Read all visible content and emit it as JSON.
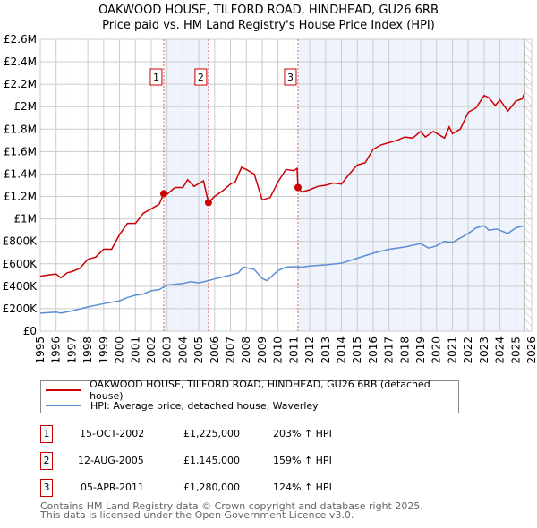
{
  "title": "OAKWOOD HOUSE, TILFORD ROAD, HINDHEAD, GU26 6RB",
  "subtitle": "Price paid vs. HM Land Registry's House Price Index (HPI)",
  "colors": {
    "property": "#cc0000",
    "hpi": "#5b8fd4",
    "shade": "#eef3fc",
    "grid": "#cccccc"
  },
  "chart_data": {
    "type": "line",
    "title": "OAKWOOD HOUSE, TILFORD ROAD, HINDHEAD, GU26 6RB — Price paid vs. HM Land Registry's House Price Index (HPI)",
    "xlim": [
      1995,
      2026
    ],
    "ylim": [
      0,
      2600000
    ],
    "x_ticks": [
      "1995",
      "1996",
      "1997",
      "1998",
      "1999",
      "2000",
      "2001",
      "2002",
      "2003",
      "2004",
      "2005",
      "2006",
      "2007",
      "2008",
      "2009",
      "2010",
      "2011",
      "2012",
      "2013",
      "2014",
      "2015",
      "2016",
      "2017",
      "2018",
      "2019",
      "2020",
      "2021",
      "2022",
      "2023",
      "2024",
      "2025",
      "2026"
    ],
    "y_ticks": [
      {
        "v": 0,
        "label": "£0"
      },
      {
        "v": 200000,
        "label": "£200K"
      },
      {
        "v": 400000,
        "label": "£400K"
      },
      {
        "v": 600000,
        "label": "£600K"
      },
      {
        "v": 800000,
        "label": "£800K"
      },
      {
        "v": 1000000,
        "label": "£1M"
      },
      {
        "v": 1200000,
        "label": "£1.2M"
      },
      {
        "v": 1400000,
        "label": "£1.4M"
      },
      {
        "v": 1600000,
        "label": "£1.6M"
      },
      {
        "v": 1800000,
        "label": "£1.8M"
      },
      {
        "v": 2000000,
        "label": "£2M"
      },
      {
        "v": 2200000,
        "label": "£2.2M"
      },
      {
        "v": 2400000,
        "label": "£2.4M"
      },
      {
        "v": 2600000,
        "label": "£2.6M"
      }
    ],
    "grid": true,
    "shaded_ranges": [
      [
        2002.79,
        2005.61
      ],
      [
        2011.26,
        2025.55
      ]
    ],
    "hatched_from": 2025.55,
    "series": [
      {
        "name": "OAKWOOD HOUSE, TILFORD ROAD, HINDHEAD, GU26 6RB (detached house)",
        "color": "#cc0000",
        "x": [
          1995,
          1995.5,
          1996,
          1996.3,
          1996.7,
          1997,
          1997.5,
          1998,
          1998.5,
          1999,
          1999.5,
          2000,
          2000.5,
          2001,
          2001.5,
          2002,
          2002.5,
          2002.79,
          2003,
          2003.5,
          2004,
          2004.3,
          2004.7,
          2005.3,
          2005.61,
          2006,
          2006.5,
          2007,
          2007.3,
          2007.7,
          2008,
          2008.5,
          2009,
          2009.5,
          2010,
          2010.5,
          2011,
          2011.2,
          2011.26,
          2011.5,
          2012,
          2012.5,
          2013,
          2013.5,
          2014,
          2014.5,
          2015,
          2015.5,
          2016,
          2016.5,
          2017,
          2017.5,
          2018,
          2018.5,
          2019,
          2019.3,
          2019.8,
          2020.5,
          2020.8,
          2021,
          2021.5,
          2022,
          2022.5,
          2023,
          2023.3,
          2023.7,
          2024,
          2024.5,
          2025,
          2025.4,
          2025.55
        ],
        "y": [
          490000,
          500000,
          510000,
          475000,
          520000,
          530000,
          560000,
          640000,
          660000,
          730000,
          730000,
          860000,
          960000,
          960000,
          1050000,
          1090000,
          1130000,
          1225000,
          1220000,
          1280000,
          1280000,
          1350000,
          1290000,
          1340000,
          1145000,
          1200000,
          1250000,
          1310000,
          1330000,
          1460000,
          1440000,
          1400000,
          1170000,
          1190000,
          1330000,
          1440000,
          1430000,
          1450000,
          1280000,
          1240000,
          1260000,
          1290000,
          1300000,
          1320000,
          1310000,
          1400000,
          1480000,
          1500000,
          1620000,
          1660000,
          1680000,
          1700000,
          1730000,
          1720000,
          1780000,
          1730000,
          1780000,
          1720000,
          1820000,
          1760000,
          1800000,
          1950000,
          1990000,
          2100000,
          2080000,
          2010000,
          2060000,
          1960000,
          2050000,
          2070000,
          2120000
        ]
      },
      {
        "name": "HPI: Average price, detached house, Waverley",
        "color": "#5b8fd4",
        "x": [
          1995,
          1996,
          1996.3,
          1997,
          1998,
          1999,
          2000,
          2000.5,
          2001,
          2001.5,
          2002,
          2002.5,
          2003,
          2004,
          2004.5,
          2005,
          2005.6,
          2006,
          2007,
          2007.5,
          2007.8,
          2008.5,
          2009,
          2009.3,
          2010,
          2010.5,
          2011,
          2011.5,
          2012,
          2013,
          2014,
          2015,
          2016,
          2017,
          2018,
          2019,
          2019.5,
          2020,
          2020.5,
          2021,
          2022,
          2022.5,
          2023,
          2023.3,
          2023.8,
          2024.5,
          2025,
          2025.55
        ],
        "y": [
          160000,
          170000,
          160000,
          180000,
          215000,
          245000,
          270000,
          300000,
          320000,
          330000,
          360000,
          370000,
          410000,
          425000,
          440000,
          430000,
          450000,
          465000,
          500000,
          520000,
          570000,
          550000,
          470000,
          450000,
          540000,
          570000,
          575000,
          570000,
          580000,
          590000,
          605000,
          650000,
          695000,
          730000,
          750000,
          780000,
          740000,
          760000,
          800000,
          790000,
          870000,
          920000,
          940000,
          900000,
          910000,
          870000,
          920000,
          940000
        ]
      }
    ],
    "sales": [
      {
        "label": "1",
        "x": 2002.79,
        "y": 1225000
      },
      {
        "label": "2",
        "x": 2005.61,
        "y": 1145000
      },
      {
        "label": "3",
        "x": 2011.26,
        "y": 1280000
      }
    ]
  },
  "legend": {
    "property": "OAKWOOD HOUSE, TILFORD ROAD, HINDHEAD, GU26 6RB (detached house)",
    "hpi": "HPI: Average price, detached house, Waverley"
  },
  "transactions": [
    {
      "num": "1",
      "date": "15-OCT-2002",
      "price": "£1,225,000",
      "hpi": "203% ↑ HPI"
    },
    {
      "num": "2",
      "date": "12-AUG-2005",
      "price": "£1,145,000",
      "hpi": "159% ↑ HPI"
    },
    {
      "num": "3",
      "date": "05-APR-2011",
      "price": "£1,280,000",
      "hpi": "124% ↑ HPI"
    }
  ],
  "footer": {
    "line1": "Contains HM Land Registry data © Crown copyright and database right 2025.",
    "line2": "This data is licensed under the Open Government Licence v3.0."
  }
}
